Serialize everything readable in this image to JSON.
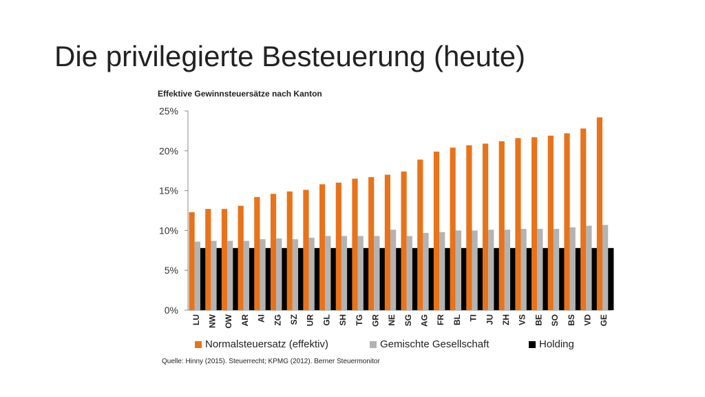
{
  "slide": {
    "title": "Die privilegierte Besteuerung (heute)",
    "source": "Quelle: Hinny (2015). Steuerrecht; KPMG (2012). Berner Steuermonitor"
  },
  "colors": {
    "series1": "#e8731a",
    "series2": "#b3b3b3",
    "series3": "#000000",
    "axis": "#888888"
  },
  "chart_data": {
    "type": "bar",
    "title": "Effektive Gewinnsteuersätze nach Kanton",
    "xlabel": "",
    "ylabel": "",
    "ylim": [
      0,
      25
    ],
    "yticks": [
      0,
      5,
      10,
      15,
      20,
      25
    ],
    "ytick_labels": [
      "0%",
      "5%",
      "10%",
      "15%",
      "20%",
      "25%"
    ],
    "legend_position": "bottom",
    "categories": [
      "LU",
      "NW",
      "OW",
      "AR",
      "AI",
      "ZG",
      "SZ",
      "UR",
      "GL",
      "SH",
      "TG",
      "GR",
      "NE",
      "SG",
      "AG",
      "FR",
      "BL",
      "TI",
      "JU",
      "ZH",
      "VS",
      "BE",
      "SO",
      "BS",
      "VD",
      "GE"
    ],
    "series": [
      {
        "name": "Normalsteuersatz (effektiv)",
        "values": [
          12.3,
          12.7,
          12.7,
          13.1,
          14.2,
          14.6,
          14.9,
          15.1,
          15.8,
          16.0,
          16.5,
          16.7,
          17.0,
          17.4,
          18.9,
          19.9,
          20.4,
          20.7,
          20.9,
          21.2,
          21.6,
          21.7,
          21.9,
          22.2,
          22.8,
          24.2
        ]
      },
      {
        "name": "Gemischte Gesellschaft",
        "values": [
          8.6,
          8.7,
          8.7,
          8.7,
          8.9,
          9.0,
          8.9,
          9.1,
          9.3,
          9.3,
          9.3,
          9.3,
          10.1,
          9.3,
          9.7,
          9.8,
          10.0,
          10.0,
          10.1,
          10.1,
          10.2,
          10.2,
          10.2,
          10.4,
          10.6,
          10.7
        ]
      },
      {
        "name": "Holding",
        "values": [
          7.8,
          7.8,
          7.8,
          7.8,
          7.8,
          7.8,
          7.8,
          7.8,
          7.8,
          7.8,
          7.8,
          7.8,
          7.8,
          7.8,
          7.8,
          7.8,
          7.8,
          7.8,
          7.8,
          7.8,
          7.8,
          7.8,
          7.8,
          7.8,
          7.8,
          7.8
        ]
      }
    ]
  }
}
